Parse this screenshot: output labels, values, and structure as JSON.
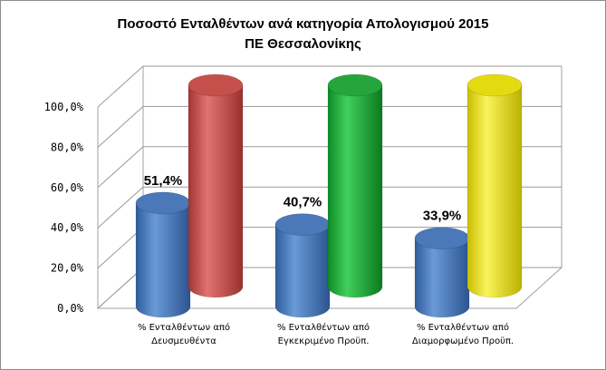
{
  "chart_data": {
    "type": "bar",
    "title": "Ποσοστό Ενταλθέντων ανά κατηγορία Απολογισμού 2015",
    "subtitle": "ΠΕ Θεσσαλονίκης",
    "ylim": [
      0,
      100
    ],
    "y_ticks": [
      "0,0%",
      "20,0%",
      "40,0%",
      "60,0%",
      "80,0%",
      "100,0%"
    ],
    "categories": [
      [
        "% Ενταλθέντων από",
        "Δευσμευθέντα"
      ],
      [
        "% Ενταλθέντων από",
        "Εγκεκριμένο Προϋπ."
      ],
      [
        "% Ενταλθέντων από",
        "Διαμορφωμένο Προϋπ."
      ]
    ],
    "series": [
      {
        "values": [
          51.4,
          40.7,
          33.9
        ],
        "labels": [
          "51,4%",
          "40,7%",
          "33,9%"
        ],
        "colors": [
          "#4f7fc2",
          "#4f7fc2",
          "#4f7fc2"
        ]
      },
      {
        "values": [
          100,
          100,
          100
        ],
        "colors": [
          "#c9504b",
          "#2bb144",
          "#e6dc16"
        ]
      }
    ],
    "grid": true,
    "style": "3d-cylinder"
  }
}
